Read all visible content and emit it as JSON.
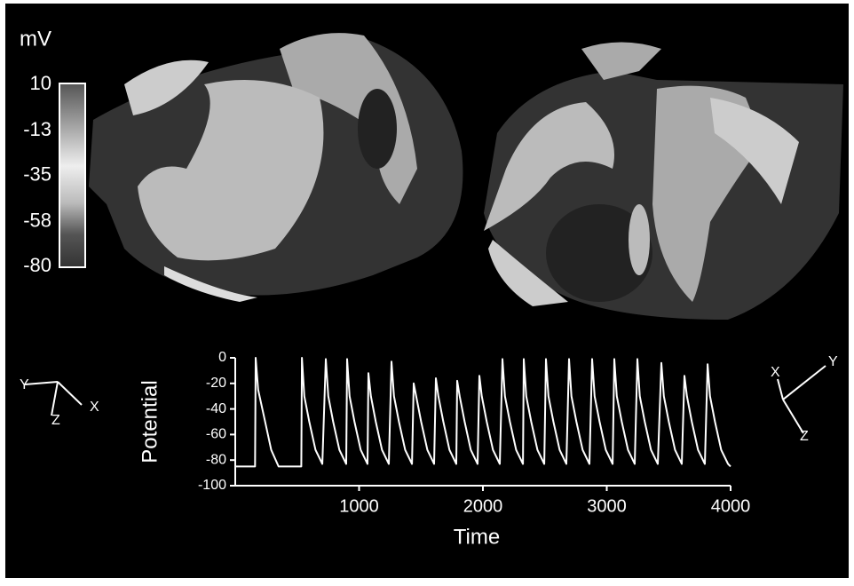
{
  "colorbar": {
    "label": "mV",
    "lim": [
      -80,
      10
    ],
    "ticks": [
      10,
      -13,
      -35,
      -58,
      -80
    ]
  },
  "triads": [
    {
      "x": "X",
      "y": "Y",
      "z": "Z"
    },
    {
      "x": "X",
      "y": "Y",
      "z": "Z"
    }
  ],
  "chart_data": {
    "type": "line",
    "xlabel": "Time",
    "ylabel": "Potential",
    "color": "#ffffff",
    "x": [
      0,
      160,
      165,
      185,
      230,
      290,
      350,
      533,
      538,
      558,
      598,
      648,
      703,
      731,
      751,
      791,
      841,
      896,
      903,
      923,
      963,
      1013,
      1068,
      1075,
      1095,
      1135,
      1185,
      1240,
      1262,
      1282,
      1322,
      1372,
      1427,
      1441,
      1461,
      1501,
      1551,
      1606,
      1620,
      1640,
      1680,
      1730,
      1785,
      1792,
      1812,
      1852,
      1902,
      1957,
      1971,
      1991,
      2031,
      2081,
      2136,
      2158,
      2178,
      2218,
      2268,
      2323,
      2330,
      2350,
      2390,
      2440,
      2495,
      2509,
      2529,
      2569,
      2619,
      2674,
      2695,
      2715,
      2755,
      2805,
      2860,
      2882,
      2902,
      2942,
      2992,
      3047,
      3061,
      3081,
      3121,
      3171,
      3226,
      3247,
      3267,
      3307,
      3357,
      3412,
      3441,
      3461,
      3501,
      3551,
      3606,
      3627,
      3647,
      3687,
      3737,
      3792,
      3814,
      3834,
      3874,
      3924,
      3979,
      4000
    ],
    "values": [
      -85,
      -85,
      0,
      -25,
      -45,
      -72,
      -85,
      -85,
      0,
      -30,
      -50,
      -72,
      -83,
      -1,
      -30,
      -50,
      -72,
      -83,
      -1,
      -30,
      -50,
      -72,
      -83,
      -12,
      -30,
      -50,
      -72,
      -83,
      -3,
      -30,
      -50,
      -72,
      -83,
      -20,
      -30,
      -50,
      -72,
      -83,
      -16,
      -30,
      -50,
      -72,
      -83,
      -18,
      -30,
      -50,
      -72,
      -83,
      -14,
      -30,
      -50,
      -72,
      -83,
      -1,
      -30,
      -50,
      -72,
      -83,
      -1,
      -30,
      -50,
      -72,
      -83,
      -1,
      -30,
      -50,
      -72,
      -83,
      -1,
      -30,
      -50,
      -72,
      -83,
      -1,
      -30,
      -50,
      -72,
      -83,
      -1,
      -30,
      -50,
      -72,
      -83,
      -1,
      -30,
      -50,
      -72,
      -83,
      -4,
      -30,
      -50,
      -72,
      -83,
      -14,
      -30,
      -50,
      -72,
      -83,
      -5,
      -30,
      -50,
      -72,
      -83,
      -85
    ],
    "xlim": [
      0,
      4000
    ],
    "xticks": [
      1000,
      2000,
      3000,
      4000
    ],
    "ylim": [
      -100,
      0
    ],
    "yticks": [
      0,
      -20,
      -40,
      -60,
      -80,
      -100
    ]
  }
}
